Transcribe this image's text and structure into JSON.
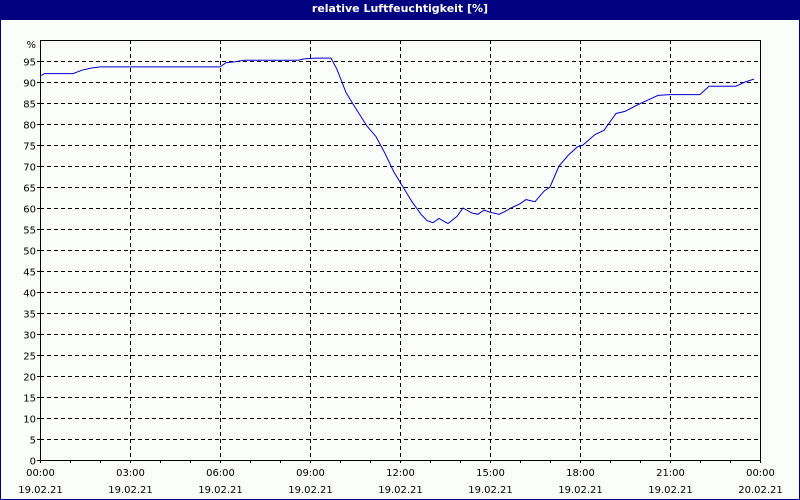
{
  "title": "relative Luftfeuchtigkeit [%]",
  "colors": {
    "title_bar": "#000080",
    "line": "#0000cc",
    "background": "#fbfdfb"
  },
  "chart_data": {
    "type": "line",
    "title": "relative Luftfeuchtigkeit [%]",
    "xlabel": "",
    "ylabel": "%",
    "ylim": [
      0,
      100
    ],
    "yticks": [
      0,
      5,
      10,
      15,
      20,
      25,
      30,
      35,
      40,
      45,
      50,
      55,
      60,
      65,
      70,
      75,
      80,
      85,
      90,
      95
    ],
    "y_unit_label": "%",
    "xticks": [
      {
        "time": "00:00",
        "date": "19.02.21"
      },
      {
        "time": "03:00",
        "date": "19.02.21"
      },
      {
        "time": "06:00",
        "date": "19.02.21"
      },
      {
        "time": "09:00",
        "date": "19.02.21"
      },
      {
        "time": "12:00",
        "date": "19.02.21"
      },
      {
        "time": "15:00",
        "date": "19.02.21"
      },
      {
        "time": "18:00",
        "date": "19.02.21"
      },
      {
        "time": "21:00",
        "date": "19.02.21"
      },
      {
        "time": "00:00",
        "date": "20.02.21"
      }
    ],
    "grid": true,
    "series": [
      {
        "name": "relative Luftfeuchtigkeit",
        "x_hours": [
          0,
          0.15,
          0.3,
          1.1,
          1.4,
          1.7,
          2.0,
          6.0,
          6.2,
          6.5,
          6.8,
          8.6,
          8.8,
          9.2,
          9.7,
          9.9,
          10.2,
          10.5,
          10.9,
          11.2,
          11.5,
          11.8,
          12.1,
          12.4,
          12.7,
          12.9,
          13.1,
          13.3,
          13.6,
          13.9,
          14.1,
          14.4,
          14.6,
          14.8,
          15.0,
          15.3,
          15.5,
          15.7,
          16.0,
          16.2,
          16.5,
          16.8,
          17.0,
          17.3,
          17.6,
          17.9,
          18.1,
          18.5,
          18.8,
          19.2,
          19.5,
          19.9,
          20.2,
          20.6,
          21.0,
          22.0,
          22.3,
          22.8,
          23.2,
          23.5,
          23.8
        ],
        "values": [
          91.4,
          92.0,
          92.0,
          92.0,
          92.8,
          93.3,
          93.6,
          93.6,
          94.6,
          94.8,
          95.2,
          95.2,
          95.5,
          95.7,
          95.7,
          93.0,
          87.5,
          84.0,
          79.5,
          77.0,
          73.0,
          68.5,
          65.0,
          61.5,
          58.5,
          57.0,
          56.5,
          57.5,
          56.3,
          58.0,
          60.0,
          58.8,
          58.5,
          59.5,
          59.0,
          58.5,
          59.2,
          60.0,
          61.0,
          62.0,
          61.5,
          64.0,
          65.0,
          70.0,
          72.5,
          74.5,
          75.0,
          77.5,
          78.5,
          82.5,
          83.0,
          84.5,
          85.5,
          86.8,
          87.0,
          87.0,
          89.0,
          89.0,
          89.0,
          90.0,
          90.7
        ]
      }
    ]
  }
}
